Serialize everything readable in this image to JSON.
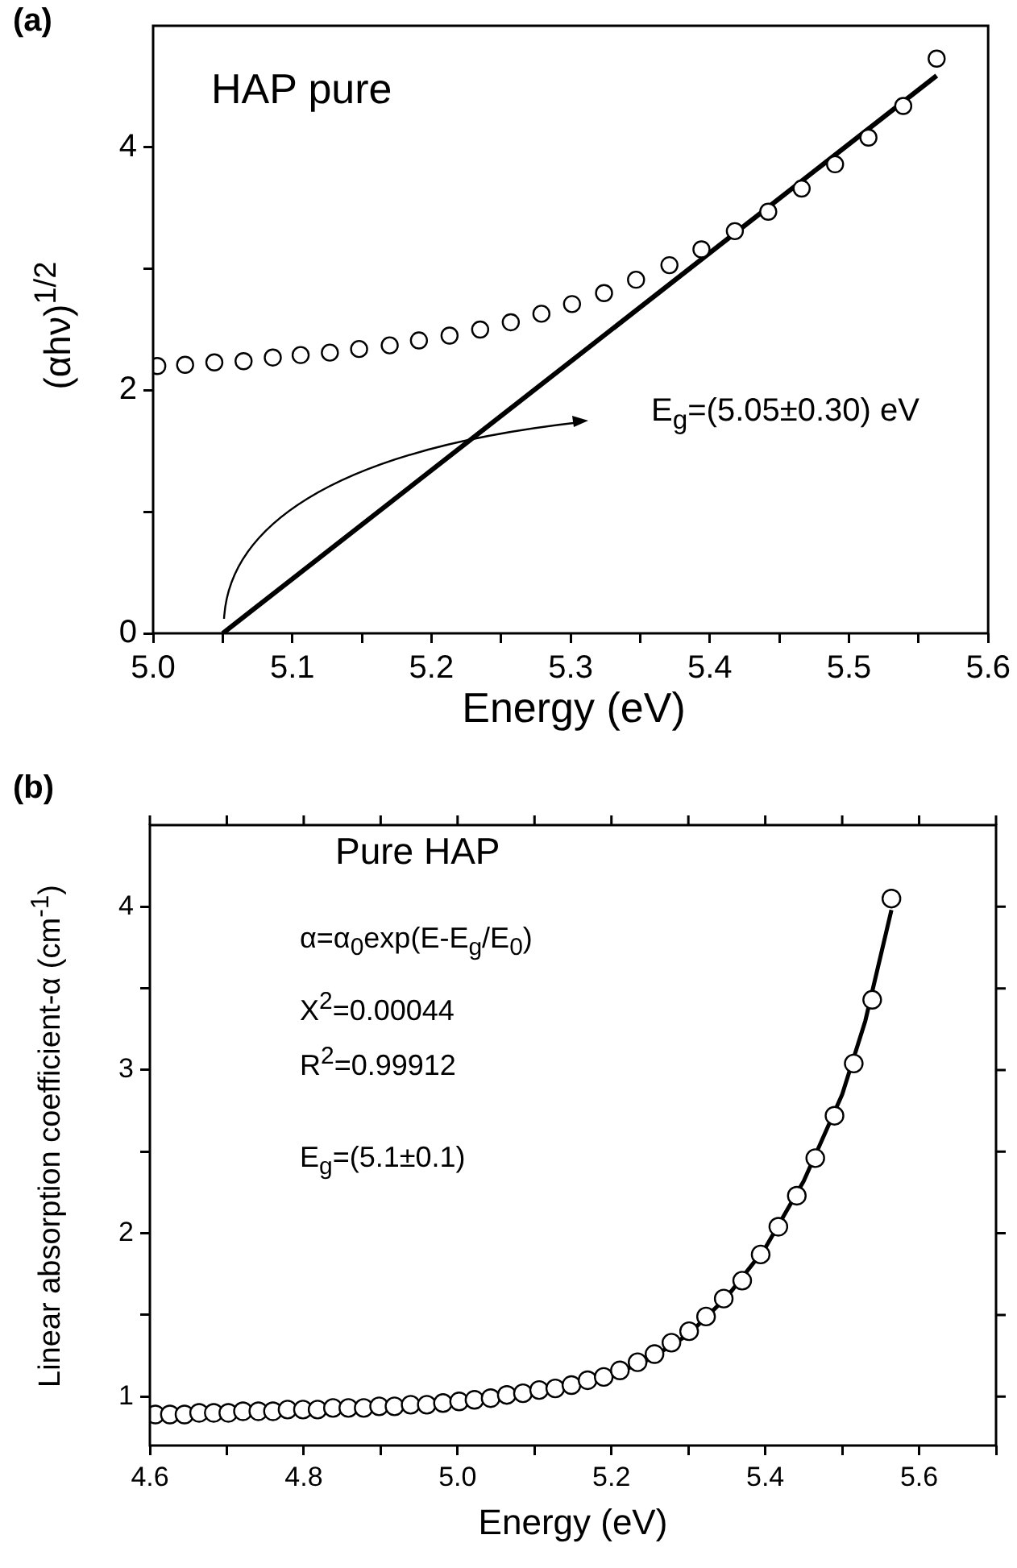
{
  "chart_data": [
    {
      "type": "scatter",
      "title": "(a)",
      "xlabel": "Energy (eV)",
      "ylabel": "(αhν)$^{1/2}$",
      "xlim": [
        5.0,
        5.6
      ],
      "ylim": [
        0,
        5
      ],
      "xticks": [
        {
          "value": 5.0,
          "label": "5.0"
        },
        {
          "value": 5.05,
          "label": null
        },
        5.1,
        {
          "value": 5.15,
          "label": null
        },
        5.2,
        {
          "value": 5.25,
          "label": null
        },
        5.3,
        {
          "value": 5.35,
          "label": null
        },
        5.4,
        {
          "value": 5.45,
          "label": null
        },
        5.5,
        {
          "value": 5.55,
          "label": null
        },
        5.6
      ],
      "yticks": [
        0,
        {
          "value": 1,
          "label": null
        },
        2,
        {
          "value": 3,
          "label": null
        },
        4
      ],
      "annotations": [
        "HAP pure",
        "E$_{g}$=(5.05±0.30) eV"
      ],
      "series": [
        {
          "marker": "circle",
          "color": "#000000",
          "x": [
            5.003,
            5.023,
            5.044,
            5.065,
            5.086,
            5.106,
            5.127,
            5.148,
            5.17,
            5.191,
            5.213,
            5.235,
            5.257,
            5.279,
            5.301,
            5.324,
            5.347,
            5.371,
            5.394,
            5.418,
            5.442,
            5.466,
            5.49,
            5.514,
            5.539,
            5.563
          ],
          "values": [
            2.2,
            2.21,
            2.23,
            2.24,
            2.27,
            2.29,
            2.31,
            2.34,
            2.37,
            2.41,
            2.45,
            2.5,
            2.56,
            2.63,
            2.71,
            2.8,
            2.91,
            3.03,
            3.16,
            3.31,
            3.47,
            3.66,
            3.86,
            4.08,
            4.34,
            4.73
          ]
        },
        {
          "type": "line",
          "marker": "none",
          "color": "#000000",
          "x": [
            5.05,
            5.563
          ],
          "values": [
            0,
            4.59
          ]
        }
      ]
    },
    {
      "type": "scatter",
      "title": "(b)",
      "xlabel": "Energy (eV)",
      "ylabel": "Linear absorption coefficient-α (cm$^{-1}$)",
      "xlim": [
        4.6,
        5.7
      ],
      "ylim": [
        0.7,
        4.5
      ],
      "xticks": [
        4.6,
        {
          "value": 4.7,
          "label": null
        },
        4.8,
        {
          "value": 4.9,
          "label": null
        },
        {
          "value": 5.0,
          "label": "5.0"
        },
        {
          "value": 5.1,
          "label": null
        },
        5.2,
        {
          "value": 5.3,
          "label": null
        },
        5.4,
        {
          "value": 5.5,
          "label": null
        },
        5.6,
        {
          "value": 5.7,
          "label": null
        }
      ],
      "yticks": [
        1,
        {
          "value": 1.5,
          "label": null
        },
        2,
        {
          "value": 2.5,
          "label": null
        },
        3,
        {
          "value": 3.5,
          "label": null
        },
        4
      ],
      "annotations": [
        "Pure HAP",
        "α=α$_{0}$exp(E-E$_{g}$/E$_{0}$)",
        "X$^{2}$=0.00044",
        "R$^{2}$=0.99912",
        "E$_{g}$=(5.1±0.1)"
      ],
      "series": [
        {
          "marker": "circle",
          "color": "#000000",
          "x": [
            4.607,
            4.626,
            4.645,
            4.664,
            4.683,
            4.702,
            4.721,
            4.741,
            4.76,
            4.779,
            4.799,
            4.818,
            4.838,
            4.858,
            4.878,
            4.898,
            4.918,
            4.939,
            4.96,
            4.981,
            5.002,
            5.022,
            5.043,
            5.064,
            5.085,
            5.106,
            5.127,
            5.148,
            5.169,
            5.19,
            5.211,
            5.234,
            5.256,
            5.278,
            5.301,
            5.323,
            5.346,
            5.37,
            5.394,
            5.417,
            5.441,
            5.465,
            5.49,
            5.515,
            5.539,
            5.564
          ],
          "values": [
            0.89,
            0.89,
            0.89,
            0.9,
            0.9,
            0.9,
            0.91,
            0.91,
            0.91,
            0.92,
            0.92,
            0.92,
            0.93,
            0.93,
            0.93,
            0.94,
            0.94,
            0.95,
            0.95,
            0.96,
            0.97,
            0.98,
            0.99,
            1.01,
            1.02,
            1.04,
            1.05,
            1.07,
            1.1,
            1.12,
            1.16,
            1.21,
            1.26,
            1.33,
            1.4,
            1.49,
            1.6,
            1.71,
            1.87,
            2.04,
            2.23,
            2.46,
            2.72,
            3.04,
            3.43,
            4.05
          ]
        },
        {
          "type": "line",
          "marker": "none",
          "color": "#000000",
          "x": [
            4.6,
            4.7,
            4.8,
            4.9,
            5.0,
            5.1,
            5.15,
            5.2,
            5.25,
            5.3,
            5.35,
            5.4,
            5.45,
            5.5,
            5.53,
            5.564
          ],
          "values": [
            0.88,
            0.9,
            0.92,
            0.94,
            0.97,
            1.03,
            1.07,
            1.13,
            1.23,
            1.38,
            1.61,
            1.91,
            2.32,
            2.85,
            3.3,
            3.98
          ]
        }
      ]
    }
  ]
}
